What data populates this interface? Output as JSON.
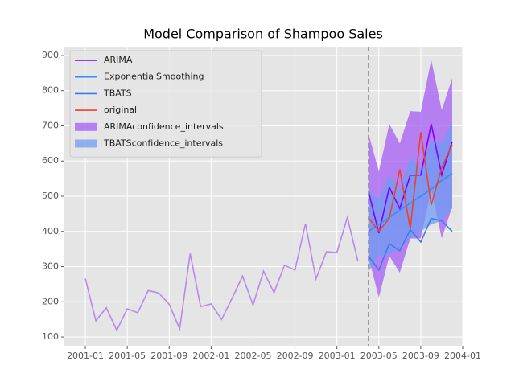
{
  "chart_data": {
    "type": "line",
    "title": "Model Comparison of Shampoo Sales",
    "x": [
      "2001-01",
      "2001-02",
      "2001-03",
      "2001-04",
      "2001-05",
      "2001-06",
      "2001-07",
      "2001-08",
      "2001-09",
      "2001-10",
      "2001-11",
      "2001-12",
      "2002-01",
      "2002-02",
      "2002-03",
      "2002-04",
      "2002-05",
      "2002-06",
      "2002-07",
      "2002-08",
      "2002-09",
      "2002-10",
      "2002-11",
      "2002-12",
      "2003-01",
      "2003-02",
      "2003-03",
      "2003-04",
      "2003-05",
      "2003-06",
      "2003-07",
      "2003-08",
      "2003-09",
      "2003-10",
      "2003-11",
      "2003-12"
    ],
    "series": [
      {
        "color": "#b888ee",
        "values": [
          266,
          146,
          183,
          119,
          180,
          169,
          232,
          225,
          193,
          123,
          337,
          186,
          194,
          150,
          210,
          273,
          191,
          287,
          226,
          304,
          290,
          422,
          265,
          342,
          340,
          440,
          316,
          null,
          null,
          null,
          null,
          null,
          null,
          null,
          null,
          null
        ]
      },
      {
        "name": "ARIMA",
        "color": "#7f00ff",
        "values": [
          null,
          null,
          null,
          null,
          null,
          null,
          null,
          null,
          null,
          null,
          null,
          null,
          null,
          null,
          null,
          null,
          null,
          null,
          null,
          null,
          null,
          null,
          null,
          null,
          null,
          null,
          null,
          515,
          395,
          525,
          465,
          560,
          560,
          705,
          560,
          655
        ]
      },
      {
        "name": "ExponentialSmoothing",
        "color": "#2f8ff0",
        "values": [
          null,
          null,
          null,
          null,
          null,
          null,
          null,
          null,
          null,
          null,
          null,
          null,
          null,
          null,
          null,
          null,
          null,
          null,
          null,
          null,
          null,
          null,
          null,
          null,
          null,
          null,
          null,
          400,
          420,
          440,
          460,
          480,
          500,
          520,
          545,
          565
        ]
      },
      {
        "name": "TBATS",
        "color": "#3a7af0",
        "values": [
          null,
          null,
          null,
          null,
          null,
          null,
          null,
          null,
          null,
          null,
          null,
          null,
          null,
          null,
          null,
          null,
          null,
          null,
          null,
          null,
          null,
          null,
          null,
          null,
          null,
          null,
          null,
          330,
          290,
          365,
          345,
          405,
          370,
          437,
          430,
          400
        ]
      },
      {
        "name": "original",
        "color": "#e8432f",
        "values": [
          null,
          null,
          null,
          null,
          null,
          null,
          null,
          null,
          null,
          null,
          null,
          null,
          null,
          null,
          null,
          null,
          null,
          null,
          null,
          null,
          null,
          null,
          null,
          null,
          null,
          null,
          null,
          439,
          401,
          437,
          576,
          408,
          682,
          475,
          581,
          647
        ]
      }
    ],
    "bands": [
      {
        "name": "ARIMAconfidence_intervals",
        "color": "#a45cf5",
        "lower": [
          null,
          null,
          null,
          null,
          null,
          null,
          null,
          null,
          null,
          null,
          null,
          null,
          null,
          null,
          null,
          null,
          null,
          null,
          null,
          null,
          null,
          null,
          null,
          null,
          null,
          null,
          null,
          330,
          212,
          330,
          283,
          380,
          380,
          520,
          380,
          470
        ],
        "upper": [
          null,
          null,
          null,
          null,
          null,
          null,
          null,
          null,
          null,
          null,
          null,
          null,
          null,
          null,
          null,
          null,
          null,
          null,
          null,
          null,
          null,
          null,
          null,
          null,
          null,
          null,
          null,
          680,
          570,
          705,
          650,
          742,
          740,
          888,
          745,
          835
        ]
      },
      {
        "name": "TBATSconfidence_intervals",
        "color": "#6f9cf2",
        "lower": [
          null,
          null,
          null,
          null,
          null,
          null,
          null,
          null,
          null,
          null,
          null,
          null,
          null,
          null,
          null,
          null,
          null,
          null,
          null,
          null,
          null,
          null,
          null,
          null,
          null,
          null,
          null,
          285,
          330,
          335,
          355,
          380,
          400,
          420,
          430,
          465
        ],
        "upper": [
          null,
          null,
          null,
          null,
          null,
          null,
          null,
          null,
          null,
          null,
          null,
          null,
          null,
          null,
          null,
          null,
          null,
          null,
          null,
          null,
          null,
          null,
          null,
          null,
          null,
          null,
          null,
          520,
          490,
          560,
          520,
          610,
          580,
          660,
          650,
          710
        ]
      }
    ],
    "vline_x": "2003-04",
    "xlim": [
      "2000-11",
      "2004-01"
    ],
    "xticks": [
      "2001-01",
      "2001-05",
      "2001-09",
      "2002-01",
      "2002-05",
      "2002-09",
      "2003-01",
      "2003-05",
      "2003-09",
      "2004-01"
    ],
    "ylim": [
      75,
      925
    ],
    "yticks": [
      100,
      200,
      300,
      400,
      500,
      600,
      700,
      800,
      900
    ],
    "grid": true,
    "legend": "upper left"
  }
}
